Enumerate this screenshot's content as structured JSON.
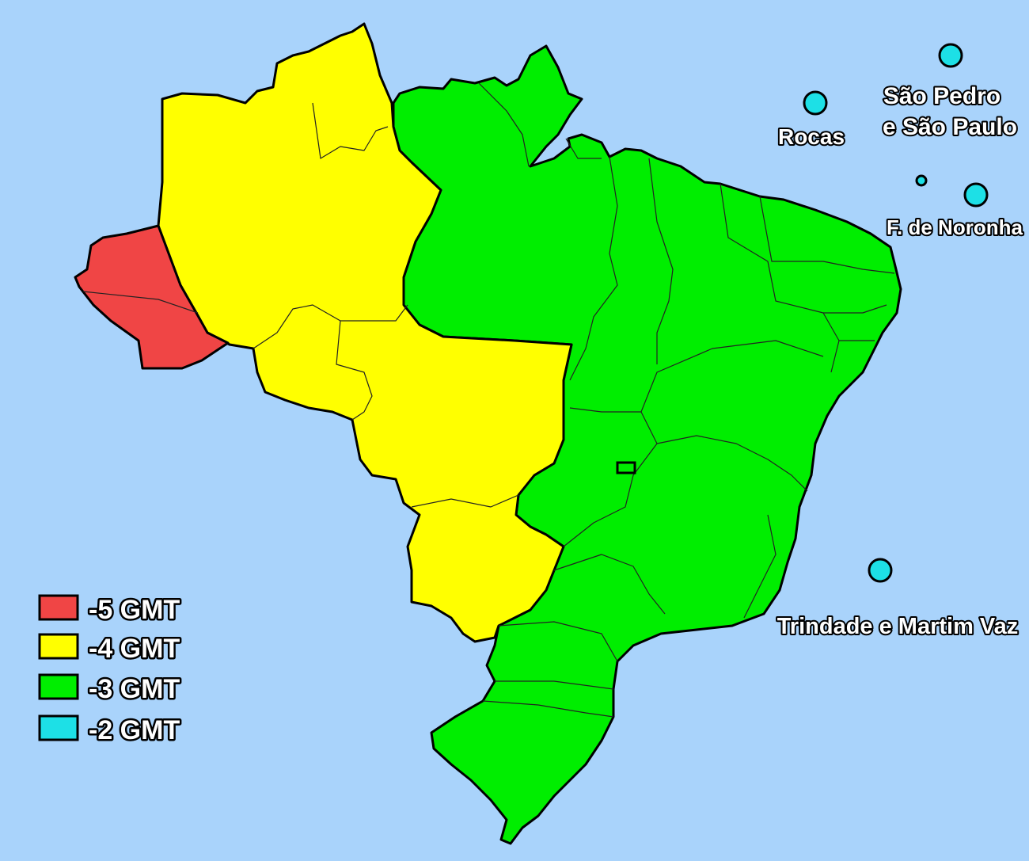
{
  "colors": {
    "ocean": "#a9d3fb",
    "gmt_minus_5": "#f04545",
    "gmt_minus_4": "#ffff00",
    "gmt_minus_3": "#00ee00",
    "gmt_minus_2": "#1de0e6"
  },
  "legend": [
    {
      "label": "-5 GMT",
      "color": "#f04545"
    },
    {
      "label": "-4 GMT",
      "color": "#ffff00"
    },
    {
      "label": "-3 GMT",
      "color": "#00ee00"
    },
    {
      "label": "-2 GMT",
      "color": "#1de0e6"
    }
  ],
  "islands": {
    "sao_pedro_line1": "São Pedro",
    "sao_pedro_line2": "e São Paulo",
    "rocas": "Rocas",
    "noronha": "F. de Noronha",
    "trindade": "Trindade e Martim Vaz"
  }
}
